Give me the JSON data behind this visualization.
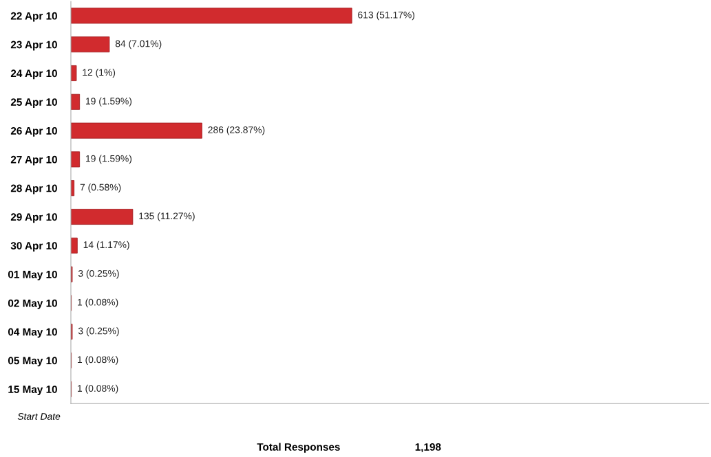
{
  "chart_data": {
    "type": "bar",
    "orientation": "horizontal",
    "ylabel": "Start Date",
    "categories": [
      "22 Apr 10",
      "23 Apr 10",
      "24 Apr 10",
      "25 Apr 10",
      "26 Apr 10",
      "27 Apr 10",
      "28 Apr 10",
      "29 Apr 10",
      "30 Apr 10",
      "01 May 10",
      "02 May 10",
      "04 May 10",
      "05 May 10",
      "15 May 10"
    ],
    "values": [
      613,
      84,
      12,
      19,
      286,
      19,
      7,
      135,
      14,
      3,
      1,
      3,
      1,
      1
    ],
    "value_labels": [
      "613 (51.17%)",
      "84 (7.01%)",
      "12 (1%)",
      "19 (1.59%)",
      "286 (23.87%)",
      "19 (1.59%)",
      "7 (0.58%)",
      "135 (11.27%)",
      "14 (1.17%)",
      "3 (0.25%)",
      "1 (0.08%)",
      "3 (0.25%)",
      "1 (0.08%)",
      "1 (0.08%)"
    ],
    "color": "#d12b2e",
    "grid": false,
    "legend": false,
    "annotations": [
      "Total Responses",
      "1,198"
    ]
  }
}
